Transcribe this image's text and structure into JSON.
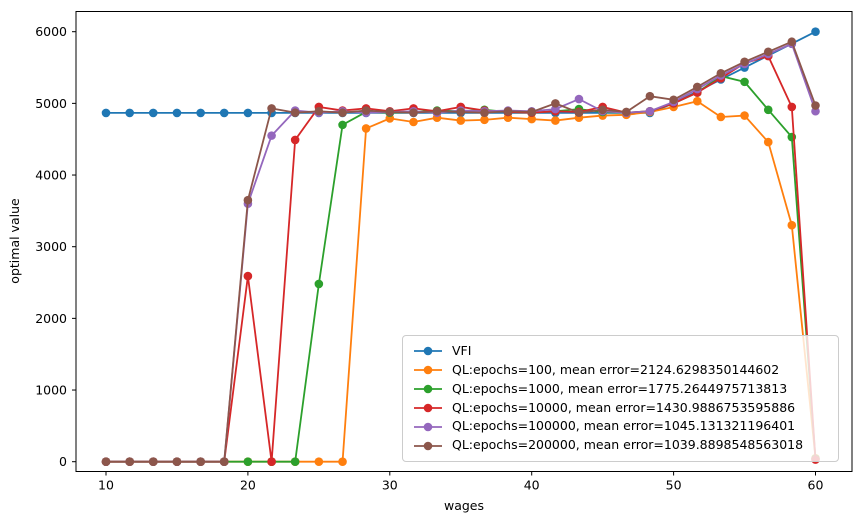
{
  "figure": {
    "background": "#ffffff",
    "plot_border_color": "#000000"
  },
  "chart_data": {
    "type": "line",
    "title": "",
    "xlabel": "wages",
    "ylabel": "optimal value",
    "xlim": [
      7.5,
      62.5
    ],
    "ylim": [
      -300,
      6300
    ],
    "x_ticks": [
      10,
      20,
      30,
      40,
      50,
      60
    ],
    "y_ticks": [
      0,
      1000,
      2000,
      3000,
      4000,
      5000,
      6000
    ],
    "grid": false,
    "legend_position": "inside lower-right",
    "marker": "circle",
    "x": [
      10,
      11.67,
      13.33,
      15,
      16.67,
      18.33,
      20,
      21.67,
      23.33,
      25,
      26.67,
      28.33,
      30,
      31.67,
      33.33,
      35,
      36.67,
      38.33,
      40,
      41.67,
      43.33,
      45,
      46.67,
      48.33,
      50,
      51.67,
      53.33,
      55,
      56.67,
      58.33,
      60
    ],
    "series": [
      {
        "name": "VFI",
        "color": "#1f77b4",
        "values": [
          4867,
          4867,
          4867,
          4867,
          4867,
          4867,
          4867,
          4867,
          4867,
          4867,
          4867,
          4867,
          4867,
          4867,
          4867,
          4867,
          4867,
          4867,
          4867,
          4867,
          4867,
          4867,
          4867,
          4867,
          5000,
          5167,
          5333,
          5500,
          5667,
          5833,
          6000
        ]
      },
      {
        "name": "QL:epochs=100, mean error=2124.6298350144602",
        "color": "#ff7f0e",
        "values": [
          0,
          0,
          0,
          0,
          0,
          0,
          0,
          0,
          0,
          0,
          0,
          4650,
          4790,
          4740,
          4800,
          4760,
          4770,
          4800,
          4780,
          4760,
          4800,
          4830,
          4840,
          4880,
          4950,
          5030,
          4810,
          4830,
          4460,
          3300,
          50
        ]
      },
      {
        "name": "QL:epochs=1000, mean error=1775.2644975713813",
        "color": "#2ca02c",
        "values": [
          0,
          0,
          0,
          0,
          0,
          0,
          0,
          0,
          0,
          2480,
          4700,
          4880,
          4870,
          4880,
          4900,
          4890,
          4910,
          4880,
          4870,
          4890,
          4920,
          4880,
          4870,
          4890,
          5000,
          5150,
          5380,
          5300,
          4910,
          4530,
          40
        ]
      },
      {
        "name": "QL:epochs=10000, mean error=1430.9886753595886",
        "color": "#d62728",
        "values": [
          0,
          0,
          0,
          0,
          0,
          0,
          2590,
          0,
          4490,
          4950,
          4900,
          4930,
          4890,
          4930,
          4890,
          4950,
          4900,
          4880,
          4870,
          4890,
          4880,
          4950,
          4870,
          4890,
          5000,
          5150,
          5350,
          5560,
          5660,
          4950,
          30
        ]
      },
      {
        "name": "QL:epochs=100000, mean error=1045.131321196401",
        "color": "#9467bd",
        "values": [
          0,
          0,
          0,
          0,
          0,
          0,
          3600,
          4550,
          4900,
          4870,
          4890,
          4870,
          4880,
          4890,
          4870,
          4900,
          4890,
          4900,
          4890,
          4920,
          5060,
          4890,
          4870,
          4890,
          5020,
          5200,
          5390,
          5550,
          5690,
          5830,
          4890
        ]
      },
      {
        "name": "QL:epochs=200000, mean error=1039.8898548563018",
        "color": "#8c564b",
        "values": [
          0,
          0,
          0,
          0,
          0,
          0,
          3650,
          4930,
          4870,
          4890,
          4870,
          4900,
          4880,
          4870,
          4890,
          4880,
          4870,
          4890,
          4880,
          5000,
          4870,
          4910,
          4880,
          5100,
          5050,
          5230,
          5420,
          5580,
          5720,
          5860,
          4970
        ]
      }
    ]
  }
}
